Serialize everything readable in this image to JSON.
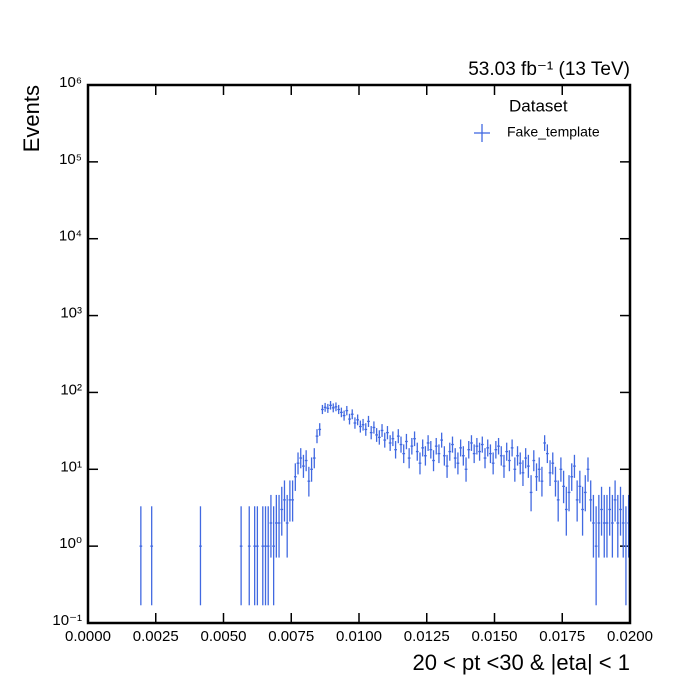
{
  "chart_data": {
    "type": "errorbar",
    "title": "53.03 fb⁻¹ (13 TeV)",
    "x_label": "20 < pt <30 & |eta| < 1",
    "y_label": "Events",
    "legend_title": "Dataset",
    "legend": "upper right",
    "log_y": true,
    "xlim": [
      0,
      0.02
    ],
    "ylim": [
      0.1,
      1000000
    ],
    "xticks": [
      {
        "value": 0,
        "label": "0.0000"
      },
      {
        "value": 0.0025,
        "label": "0.0025"
      },
      {
        "value": 0.005,
        "label": "0.0050"
      },
      {
        "value": 0.0075,
        "label": "0.0075"
      },
      {
        "value": 0.01,
        "label": "0.0100"
      },
      {
        "value": 0.0125,
        "label": "0.0125"
      },
      {
        "value": 0.015,
        "label": "0.0150"
      },
      {
        "value": 0.0175,
        "label": "0.0175"
      },
      {
        "value": 0.02,
        "label": "0.0200"
      }
    ],
    "yticks": [
      {
        "value": 0.1,
        "label": "10⁻¹"
      },
      {
        "value": 1,
        "label": "10⁰"
      },
      {
        "value": 10,
        "label": "10¹"
      },
      {
        "value": 100,
        "label": "10²"
      },
      {
        "value": 1000,
        "label": "10³"
      },
      {
        "value": 10000,
        "label": "10⁴"
      },
      {
        "value": 100000,
        "label": "10⁵"
      },
      {
        "value": 1000000,
        "label": "10⁶"
      }
    ],
    "series": [
      {
        "name": "Fake_template",
        "color": "#4169e1",
        "xerr": 5e-05,
        "x": [
          0.00195,
          0.00235,
          0.00415,
          0.00565,
          0.00595,
          0.00615,
          0.00625,
          0.00645,
          0.00655,
          0.00665,
          0.00675,
          0.00685,
          0.00695,
          0.00705,
          0.00715,
          0.00725,
          0.00735,
          0.00745,
          0.00755,
          0.00765,
          0.00775,
          0.00785,
          0.00795,
          0.00805,
          0.00815,
          0.00825,
          0.00835,
          0.00845,
          0.00855,
          0.00865,
          0.00875,
          0.00885,
          0.00895,
          0.00905,
          0.00915,
          0.00925,
          0.00935,
          0.00945,
          0.00955,
          0.00965,
          0.00975,
          0.00985,
          0.00995,
          0.01005,
          0.01015,
          0.01025,
          0.01035,
          0.01045,
          0.01055,
          0.01065,
          0.01075,
          0.01085,
          0.01095,
          0.01105,
          0.01115,
          0.01125,
          0.01135,
          0.01145,
          0.01155,
          0.01165,
          0.01175,
          0.01185,
          0.01195,
          0.01205,
          0.01215,
          0.01225,
          0.01235,
          0.01245,
          0.01255,
          0.01265,
          0.01275,
          0.01285,
          0.01295,
          0.01305,
          0.01315,
          0.01325,
          0.01335,
          0.01345,
          0.01355,
          0.01365,
          0.01375,
          0.01385,
          0.01395,
          0.01405,
          0.01415,
          0.01425,
          0.01435,
          0.01445,
          0.01455,
          0.01465,
          0.01475,
          0.01485,
          0.01495,
          0.01505,
          0.01515,
          0.01525,
          0.01535,
          0.01545,
          0.01555,
          0.01565,
          0.01575,
          0.01585,
          0.01595,
          0.01605,
          0.01615,
          0.01625,
          0.01635,
          0.01645,
          0.01655,
          0.01665,
          0.01675,
          0.01685,
          0.01695,
          0.01705,
          0.01715,
          0.01725,
          0.01735,
          0.01745,
          0.01755,
          0.01765,
          0.01775,
          0.01785,
          0.01795,
          0.01805,
          0.01815,
          0.01825,
          0.01835,
          0.01845,
          0.01855,
          0.01865,
          0.01875,
          0.01885,
          0.01895,
          0.01905,
          0.01915,
          0.01925,
          0.01935,
          0.01945,
          0.01955,
          0.01965,
          0.01975,
          0.01985,
          0.01995
        ],
        "values": [
          1,
          1,
          1,
          1,
          1,
          1,
          1,
          1,
          1,
          1,
          2,
          1,
          2,
          2,
          3,
          4,
          2,
          4,
          4,
          8,
          12,
          14,
          11,
          13,
          7,
          10,
          14,
          27,
          33,
          60,
          64,
          62,
          68,
          63,
          65,
          60,
          55,
          50,
          58,
          45,
          52,
          40,
          44,
          36,
          38,
          33,
          42,
          30,
          35,
          28,
          26,
          32,
          24,
          30,
          22,
          25,
          18,
          27,
          21,
          16,
          23,
          14,
          20,
          25,
          17,
          12,
          19,
          15,
          22,
          18,
          13,
          20,
          16,
          24,
          15,
          11,
          17,
          21,
          14,
          12,
          19,
          15,
          10,
          18,
          22,
          16,
          20,
          17,
          21,
          14,
          19,
          16,
          12,
          18,
          20,
          15,
          11,
          17,
          13,
          19,
          10,
          15,
          12,
          9,
          14,
          11,
          5,
          13,
          8,
          10,
          7,
          22,
          16,
          9,
          12,
          7,
          4,
          10,
          6,
          3,
          5,
          8,
          11,
          4,
          6,
          3,
          5,
          10,
          4,
          2,
          1,
          2,
          3,
          2,
          2,
          3,
          2,
          4,
          2,
          3,
          2,
          1,
          2
        ],
        "yerr_low": [
          0.83,
          0.83,
          0.83,
          0.83,
          0.83,
          0.83,
          0.83,
          0.83,
          0.83,
          0.83,
          1.29,
          0.83,
          1.29,
          1.29,
          1.63,
          1.91,
          1.29,
          1.91,
          1.91,
          2.77,
          3.42,
          3.7,
          3.27,
          3.56,
          2.58,
          3.11,
          3.7,
          5.17,
          5.72,
          7.73,
          7.98,
          7.86,
          8.23,
          7.92,
          8.04,
          7.73,
          7.4,
          7.05,
          7.6,
          6.68,
          7.19,
          6.3,
          6.61,
          5.97,
          6.14,
          5.72,
          6.46,
          5.45,
          5.89,
          5.27,
          5.07,
          5.63,
          4.87,
          5.45,
          4.66,
          4.97,
          4.2,
          5.17,
          4.55,
          3.96,
          4.77,
          3.7,
          4.44,
          4.97,
          4.08,
          3.42,
          4.32,
          3.83,
          4.66,
          4.2,
          3.56,
          4.44,
          3.96,
          4.87,
          3.83,
          3.27,
          4.08,
          4.55,
          3.7,
          3.42,
          4.32,
          3.83,
          3.11,
          4.2,
          4.66,
          3.96,
          4.44,
          4.08,
          4.55,
          3.7,
          4.32,
          3.96,
          3.42,
          4.2,
          4.44,
          3.83,
          3.27,
          4.08,
          3.56,
          4.32,
          3.11,
          3.83,
          3.42,
          2.94,
          3.7,
          3.27,
          2.16,
          3.56,
          2.77,
          3.11,
          2.58,
          4.66,
          3.96,
          2.94,
          3.42,
          2.58,
          1.91,
          3.11,
          2.38,
          1.63,
          2.16,
          2.77,
          3.27,
          1.91,
          2.38,
          1.63,
          2.16,
          3.11,
          1.91,
          1.29,
          0.83,
          1.29,
          1.63,
          1.29,
          1.29,
          1.63,
          1.29,
          1.91,
          1.29,
          1.63,
          1.29,
          0.83,
          1.29
        ],
        "yerr_high": [
          2.3,
          2.3,
          2.3,
          2.3,
          2.3,
          2.3,
          2.3,
          2.3,
          2.3,
          2.3,
          2.64,
          2.3,
          2.64,
          2.64,
          2.92,
          3.16,
          2.64,
          3.16,
          3.16,
          3.95,
          4.56,
          4.83,
          4.42,
          4.7,
          3.77,
          4.27,
          4.83,
          6.26,
          6.8,
          8.77,
          9.03,
          8.9,
          9.28,
          8.96,
          9.09,
          8.77,
          8.44,
          8.09,
          8.64,
          7.73,
          8.23,
          7.36,
          7.66,
          7.05,
          7.21,
          6.8,
          7.51,
          6.54,
          6.97,
          6.36,
          6.17,
          6.71,
          5.97,
          6.54,
          5.76,
          6.07,
          5.32,
          6.26,
          5.66,
          5.08,
          5.87,
          4.83,
          5.55,
          6.07,
          5.2,
          4.56,
          5.44,
          4.96,
          5.76,
          5.32,
          4.7,
          5.55,
          5.08,
          5.97,
          4.96,
          4.42,
          5.2,
          5.66,
          4.83,
          4.56,
          5.44,
          4.96,
          4.27,
          5.32,
          5.76,
          5.08,
          5.55,
          5.2,
          5.66,
          4.83,
          5.44,
          5.08,
          4.56,
          5.32,
          5.55,
          4.96,
          4.42,
          5.2,
          4.7,
          5.44,
          4.27,
          4.96,
          4.56,
          4.11,
          4.83,
          4.42,
          3.38,
          4.7,
          3.95,
          4.27,
          3.77,
          5.76,
          5.08,
          4.11,
          4.56,
          3.77,
          3.16,
          4.27,
          3.58,
          2.92,
          3.38,
          3.95,
          4.42,
          3.16,
          3.58,
          2.92,
          3.38,
          4.27,
          3.16,
          2.64,
          2.3,
          2.64,
          2.92,
          2.64,
          2.64,
          2.92,
          2.64,
          3.16,
          2.64,
          2.92,
          2.64,
          2.3,
          2.64
        ]
      }
    ]
  }
}
